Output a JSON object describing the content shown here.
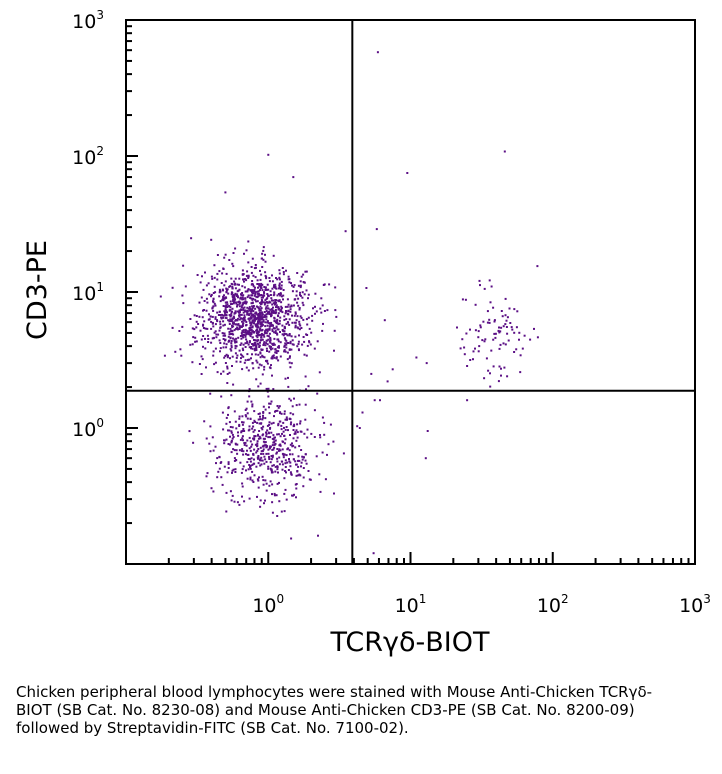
{
  "chart_data": {
    "type": "scatter",
    "title": "",
    "xlabel": "TCRγδ-BIOT",
    "ylabel": "CD3-PE",
    "x_scale": "log",
    "y_scale": "log",
    "xlim": [
      0.1,
      1000
    ],
    "ylim": [
      0.1,
      1000
    ],
    "x_ticks": [
      {
        "base": "10",
        "exp": "0",
        "value": 1
      },
      {
        "base": "10",
        "exp": "1",
        "value": 10
      },
      {
        "base": "10",
        "exp": "2",
        "value": 100
      },
      {
        "base": "10",
        "exp": "3",
        "value": 1000
      }
    ],
    "y_ticks": [
      {
        "base": "10",
        "exp": "0",
        "value": 1
      },
      {
        "base": "10",
        "exp": "1",
        "value": 10
      },
      {
        "base": "10",
        "exp": "2",
        "value": 100
      },
      {
        "base": "10",
        "exp": "3",
        "value": 1000
      }
    ],
    "gates": {
      "x": 3.9,
      "y": 1.88
    },
    "point_color": "#5b0f85",
    "populations": [
      {
        "cx": 0.8,
        "cy": 6.5,
        "sx": 0.19,
        "sy": 0.18,
        "n": 1300
      },
      {
        "cx": 0.95,
        "cy": 0.75,
        "sx": 0.19,
        "sy": 0.2,
        "n": 560
      },
      {
        "cx": 38,
        "cy": 5.0,
        "sx": 0.11,
        "sy": 0.16,
        "n": 95
      }
    ],
    "points": [
      [
        5.9,
        580
      ],
      [
        46,
        108
      ],
      [
        9.5,
        75
      ],
      [
        1.0,
        102
      ],
      [
        78,
        15.5
      ],
      [
        5.8,
        29
      ],
      [
        3.5,
        28
      ],
      [
        1.5,
        70
      ],
      [
        0.5,
        54
      ],
      [
        4.9,
        10.7
      ],
      [
        6.6,
        6.2
      ],
      [
        7.5,
        2.7
      ],
      [
        6.9,
        2.2
      ],
      [
        5.3,
        2.5
      ],
      [
        5.6,
        1.6
      ],
      [
        6.1,
        1.6
      ],
      [
        4.6,
        1.3
      ],
      [
        13.2,
        0.95
      ],
      [
        12.8,
        0.6
      ],
      [
        25,
        1.6
      ],
      [
        11,
        3.3
      ],
      [
        13,
        3.0
      ],
      [
        5.5,
        0.12
      ],
      [
        3.4,
        0.65
      ],
      [
        2.9,
        0.33
      ],
      [
        4.4,
        1.0
      ]
    ],
    "point_seed": 20240517
  },
  "caption": "Chicken peripheral blood lymphocytes were stained with Mouse Anti-Chicken TCRγδ-BIOT (SB Cat. No. 8230-08) and Mouse Anti-Chicken CD3-PE (SB Cat. No. 8200-09) followed by Streptavidin-FITC (SB Cat. No. 7100-02)."
}
